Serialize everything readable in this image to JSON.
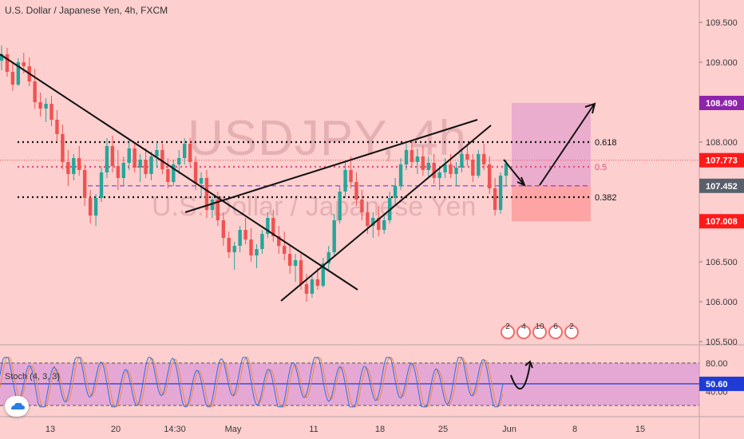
{
  "header": {
    "title": "U.S. Dollar / Japanese Yen, 4h, FXCM"
  },
  "watermark": {
    "symbol": "USDJPY, 4h",
    "name": "U.S. Dollar / Japanese Yen"
  },
  "colors": {
    "background": "#fdcfcf",
    "up": "#26a69a",
    "down": "#ef5350",
    "purple": "#8e24aa",
    "blue": "#1f3bd6",
    "red_label": "#ff1a1a",
    "gray_label": "#59606c"
  },
  "chart_data": {
    "type": "candlestick",
    "title": "U.S. Dollar / Japanese Yen, 4h, FXCM",
    "ylim": [
      105.5,
      109.75
    ],
    "y_ticks": [
      "109.500",
      "109.000",
      "108.500",
      "108.000",
      "107.500",
      "107.000",
      "106.500",
      "106.000",
      "105.500"
    ],
    "x_ticks": [
      "13",
      "20",
      "14:30",
      "May",
      "11",
      "18",
      "25",
      "Jun",
      "8",
      "15"
    ],
    "ohlc": [
      [
        109.02,
        109.21,
        108.9,
        109.1
      ],
      [
        109.1,
        109.18,
        108.82,
        108.88
      ],
      [
        108.88,
        109.0,
        108.64,
        108.72
      ],
      [
        108.72,
        109.05,
        108.7,
        109.0
      ],
      [
        109.0,
        109.12,
        108.86,
        108.95
      ],
      [
        108.95,
        109.06,
        108.7,
        108.76
      ],
      [
        108.76,
        108.92,
        108.42,
        108.5
      ],
      [
        108.5,
        108.62,
        108.32,
        108.42
      ],
      [
        108.42,
        108.55,
        108.25,
        108.48
      ],
      [
        108.48,
        108.58,
        108.2,
        108.28
      ],
      [
        108.28,
        108.4,
        108.0,
        108.1
      ],
      [
        108.1,
        108.22,
        107.66,
        107.75
      ],
      [
        107.75,
        107.9,
        107.45,
        107.6
      ],
      [
        107.6,
        107.85,
        107.52,
        107.8
      ],
      [
        107.8,
        107.95,
        107.58,
        107.65
      ],
      [
        107.65,
        107.72,
        107.2,
        107.3
      ],
      [
        107.3,
        107.4,
        106.98,
        107.08
      ],
      [
        107.08,
        107.35,
        106.95,
        107.3
      ],
      [
        107.3,
        107.7,
        107.25,
        107.62
      ],
      [
        107.62,
        108.05,
        107.55,
        107.95
      ],
      [
        107.95,
        108.08,
        107.62,
        107.7
      ],
      [
        107.7,
        107.9,
        107.4,
        107.55
      ],
      [
        107.55,
        107.82,
        107.45,
        107.74
      ],
      [
        107.74,
        108.02,
        107.65,
        107.92
      ],
      [
        107.92,
        108.0,
        107.62,
        107.68
      ],
      [
        107.68,
        107.85,
        107.5,
        107.78
      ],
      [
        107.78,
        107.92,
        107.55,
        107.6
      ],
      [
        107.6,
        107.88,
        107.52,
        107.82
      ],
      [
        107.82,
        108.0,
        107.68,
        107.9
      ],
      [
        107.9,
        107.98,
        107.6,
        107.66
      ],
      [
        107.66,
        107.8,
        107.42,
        107.5
      ],
      [
        107.5,
        107.78,
        107.45,
        107.72
      ],
      [
        107.72,
        107.9,
        107.6,
        107.8
      ],
      [
        107.8,
        108.05,
        107.72,
        107.98
      ],
      [
        107.98,
        108.05,
        107.7,
        107.75
      ],
      [
        107.75,
        107.82,
        107.4,
        107.48
      ],
      [
        107.48,
        107.62,
        107.3,
        107.55
      ],
      [
        107.55,
        107.65,
        107.05,
        107.15
      ],
      [
        107.15,
        107.32,
        107.05,
        107.28
      ],
      [
        107.28,
        107.38,
        106.95,
        107.02
      ],
      [
        107.02,
        107.12,
        106.7,
        106.8
      ],
      [
        106.8,
        106.88,
        106.55,
        106.62
      ],
      [
        106.62,
        106.75,
        106.4,
        106.7
      ],
      [
        106.7,
        106.95,
        106.62,
        106.9
      ],
      [
        106.9,
        107.05,
        106.72,
        106.78
      ],
      [
        106.78,
        106.92,
        106.5,
        106.58
      ],
      [
        106.58,
        106.72,
        106.42,
        106.66
      ],
      [
        106.66,
        106.9,
        106.6,
        106.85
      ],
      [
        106.85,
        107.12,
        106.8,
        107.05
      ],
      [
        107.05,
        107.15,
        106.75,
        106.82
      ],
      [
        106.82,
        106.95,
        106.6,
        106.7
      ],
      [
        106.7,
        106.88,
        106.52,
        106.6
      ],
      [
        106.6,
        106.72,
        106.35,
        106.45
      ],
      [
        106.45,
        106.6,
        106.25,
        106.52
      ],
      [
        106.52,
        106.6,
        106.15,
        106.22
      ],
      [
        106.22,
        106.35,
        106.0,
        106.1
      ],
      [
        106.1,
        106.32,
        106.05,
        106.28
      ],
      [
        106.28,
        106.42,
        106.15,
        106.2
      ],
      [
        106.2,
        106.55,
        106.18,
        106.48
      ],
      [
        106.48,
        106.7,
        106.4,
        106.62
      ],
      [
        106.62,
        107.1,
        106.58,
        107.02
      ],
      [
        107.02,
        107.45,
        106.98,
        107.38
      ],
      [
        107.38,
        107.75,
        107.3,
        107.65
      ],
      [
        107.65,
        107.82,
        107.42,
        107.5
      ],
      [
        107.5,
        107.62,
        107.2,
        107.28
      ],
      [
        107.28,
        107.4,
        107.02,
        107.12
      ],
      [
        107.12,
        107.25,
        106.85,
        106.95
      ],
      [
        106.95,
        107.12,
        106.8,
        107.05
      ],
      [
        107.05,
        107.2,
        106.82,
        106.9
      ],
      [
        106.9,
        107.1,
        106.85,
        107.02
      ],
      [
        107.02,
        107.38,
        106.98,
        107.3
      ],
      [
        107.3,
        107.55,
        107.2,
        107.45
      ],
      [
        107.45,
        107.8,
        107.4,
        107.72
      ],
      [
        107.72,
        107.98,
        107.65,
        107.9
      ],
      [
        107.9,
        108.02,
        107.68,
        107.75
      ],
      [
        107.75,
        107.92,
        107.6,
        107.82
      ],
      [
        107.82,
        107.95,
        107.58,
        107.65
      ],
      [
        107.65,
        107.82,
        107.55,
        107.74
      ],
      [
        107.74,
        107.85,
        107.48,
        107.55
      ],
      [
        107.55,
        107.7,
        107.4,
        107.62
      ],
      [
        107.62,
        107.8,
        107.55,
        107.72
      ],
      [
        107.72,
        107.85,
        107.55,
        107.6
      ],
      [
        107.6,
        107.75,
        107.45,
        107.68
      ],
      [
        107.68,
        107.92,
        107.62,
        107.85
      ],
      [
        107.85,
        107.98,
        107.7,
        107.78
      ],
      [
        107.78,
        107.85,
        107.5,
        107.58
      ],
      [
        107.58,
        107.9,
        107.55,
        107.85
      ],
      [
        107.85,
        107.98,
        107.65,
        107.72
      ],
      [
        107.72,
        107.82,
        107.35,
        107.42
      ],
      [
        107.42,
        107.55,
        107.08,
        107.15
      ],
      [
        107.15,
        107.62,
        107.1,
        107.58
      ],
      [
        107.58,
        107.78,
        107.45,
        107.73
      ]
    ],
    "fib_levels": [
      {
        "label": "0.618",
        "value": 108.0
      },
      {
        "label": "0.5",
        "value": 107.69
      },
      {
        "label": "0.382",
        "value": 107.31
      }
    ],
    "dashed_level": 107.452,
    "price_labels": [
      {
        "text": "108.490",
        "value": 108.49,
        "color": "#8e24aa"
      },
      {
        "text": "107.773",
        "value": 107.773,
        "color": "#ff1a1a"
      },
      {
        "text": "107.452",
        "value": 107.452,
        "color": "#59606c"
      },
      {
        "text": "107.008",
        "value": 107.008,
        "color": "#ff1a1a"
      }
    ],
    "position": {
      "entry": 107.452,
      "target": 108.49,
      "stop": 107.008
    },
    "event_markers": [
      "2",
      "4",
      "10",
      "6",
      "2"
    ],
    "stochastic": {
      "label": "Stoch (4, 3, 3)",
      "ylim": [
        20,
        90
      ],
      "y_ticks": [
        "80.00",
        "40.00"
      ],
      "levels": [
        80,
        20
      ],
      "value_label": "50.60",
      "value": 50.6
    }
  }
}
